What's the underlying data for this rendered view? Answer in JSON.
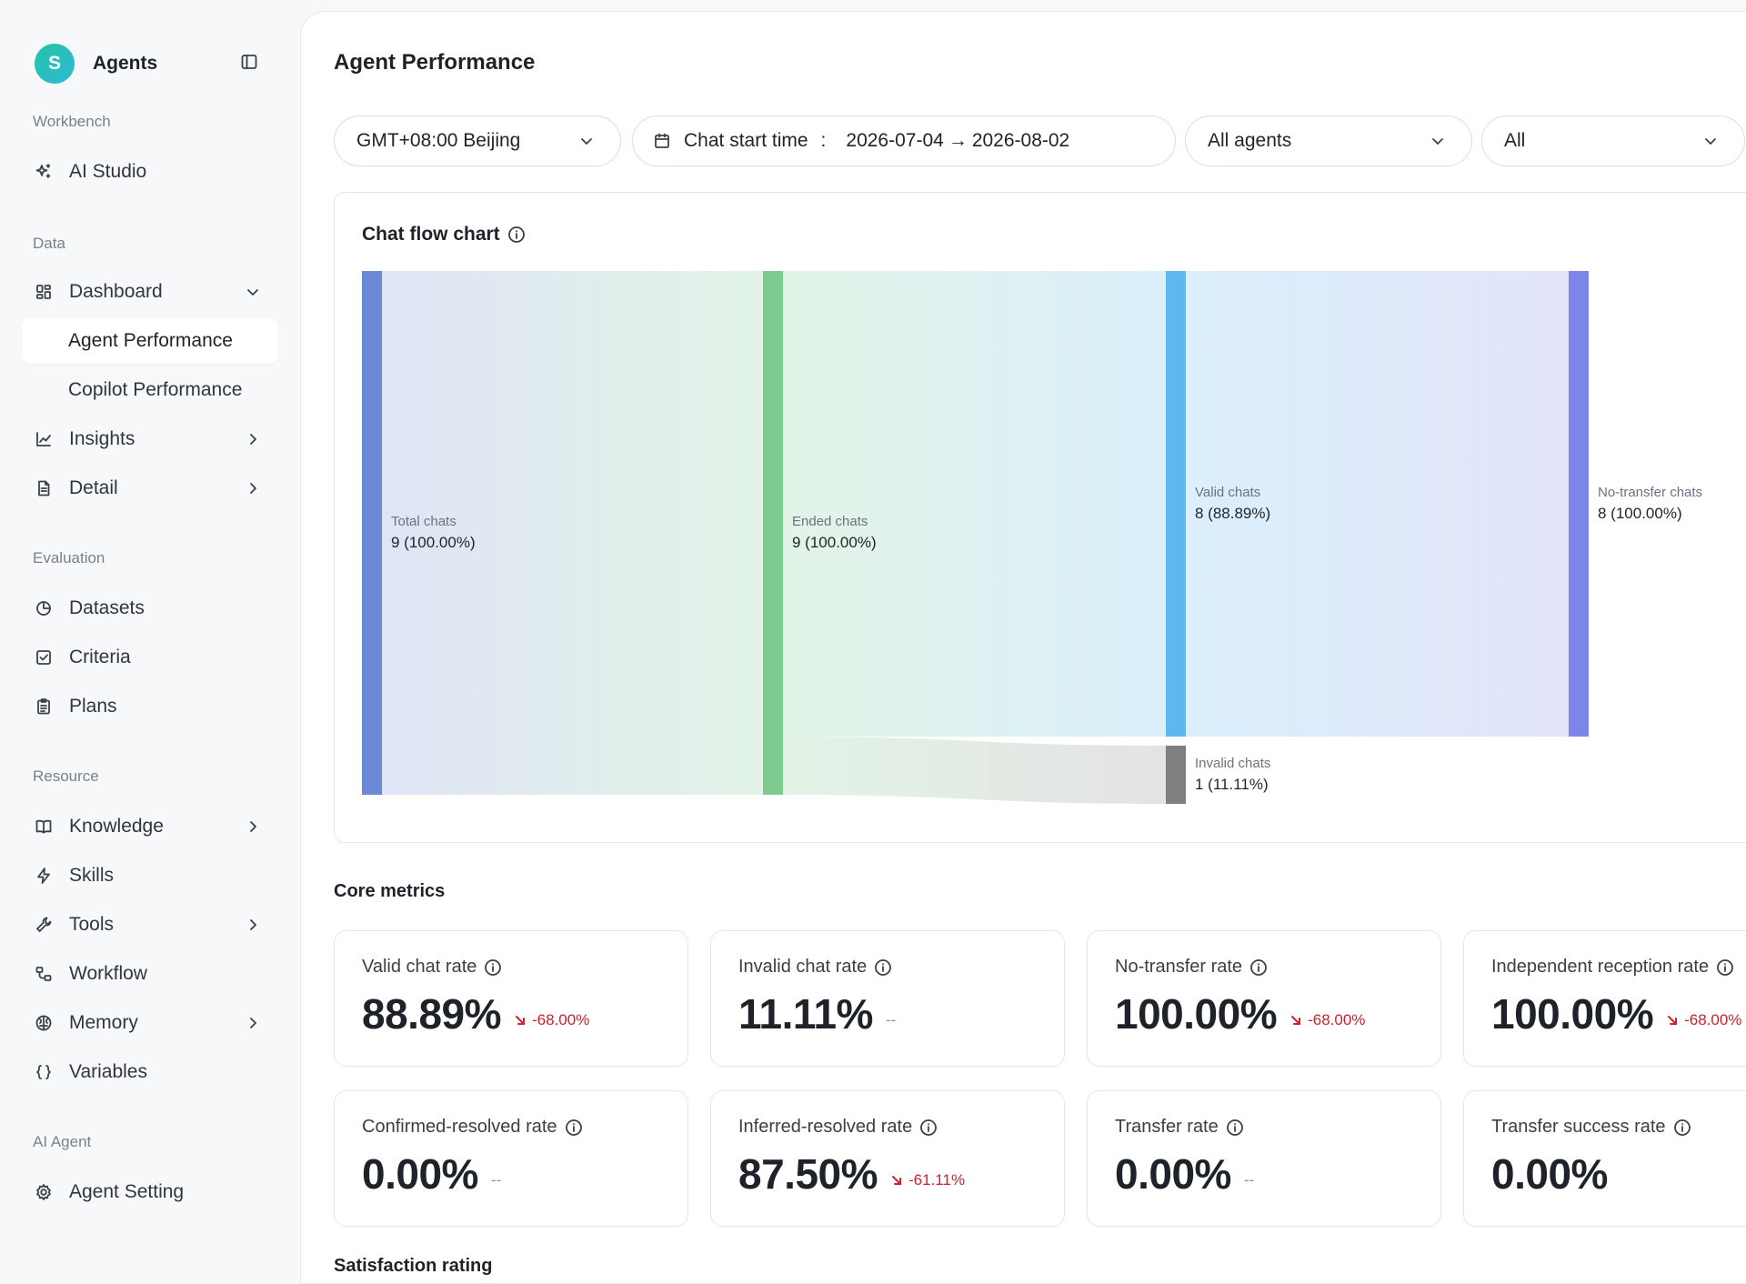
{
  "sidebar": {
    "brand": {
      "avatar_letter": "S",
      "name": "Agents"
    },
    "sections": {
      "workbench": "Workbench",
      "data": "Data",
      "evaluation": "Evaluation",
      "resource": "Resource",
      "ai_agent": "AI Agent"
    },
    "items": {
      "ai_studio": "AI Studio",
      "dashboard": "Dashboard",
      "agent_performance": "Agent Performance",
      "copilot_performance": "Copilot Performance",
      "insights": "Insights",
      "detail": "Detail",
      "datasets": "Datasets",
      "criteria": "Criteria",
      "plans": "Plans",
      "knowledge": "Knowledge",
      "skills": "Skills",
      "tools": "Tools",
      "workflow": "Workflow",
      "memory": "Memory",
      "variables": "Variables",
      "agent_setting": "Agent Setting"
    }
  },
  "main": {
    "title": "Agent Performance",
    "filters": {
      "timezone": "GMT+08:00 Beijing",
      "time_label": "Chat start time",
      "time_sep": ":",
      "date_start": "2026-07-04",
      "date_arrow": "→",
      "date_end": "2026-08-02",
      "agents": "All agents",
      "extra": "All"
    },
    "flow_chart": {
      "title": "Chat flow chart"
    },
    "core_metrics_title": "Core metrics",
    "metrics": [
      {
        "label": "Valid chat rate",
        "value": "88.89%",
        "delta": "-68.00%",
        "trend": "down"
      },
      {
        "label": "Invalid chat rate",
        "value": "11.11%",
        "delta": "--",
        "trend": "none"
      },
      {
        "label": "No-transfer rate",
        "value": "100.00%",
        "delta": "-68.00%",
        "trend": "down"
      },
      {
        "label": "Independent reception rate",
        "value": "100.00%",
        "delta": "-68.00%",
        "trend": "down"
      },
      {
        "label": "Confirmed-resolved rate",
        "value": "0.00%",
        "delta": "--",
        "trend": "none"
      },
      {
        "label": "Inferred-resolved rate",
        "value": "87.50%",
        "delta": "-61.11%",
        "trend": "down"
      },
      {
        "label": "Transfer rate",
        "value": "0.00%",
        "delta": "--",
        "trend": "none"
      },
      {
        "label": "Transfer success rate",
        "value": "0.00%",
        "delta": "",
        "trend": "none"
      }
    ],
    "satisfaction_title": "Satisfaction rating"
  },
  "chart_data": {
    "type": "sankey",
    "title": "Chat flow chart",
    "nodes": [
      {
        "name": "Total chats",
        "value": 9,
        "percent": "100.00%",
        "color": "#6b89d4"
      },
      {
        "name": "Ended chats",
        "value": 9,
        "percent": "100.00%",
        "color": "#7ecb8f"
      },
      {
        "name": "Valid chats",
        "value": 8,
        "percent": "88.89%",
        "color": "#5db8ef"
      },
      {
        "name": "Invalid chats",
        "value": 1,
        "percent": "11.11%",
        "color": "#7f7f7f"
      },
      {
        "name": "No-transfer chats",
        "value": 8,
        "percent": "100.00%",
        "color": "#7b86e6"
      }
    ],
    "links": [
      {
        "source": "Total chats",
        "target": "Ended chats",
        "value": 9
      },
      {
        "source": "Ended chats",
        "target": "Valid chats",
        "value": 8
      },
      {
        "source": "Ended chats",
        "target": "Invalid chats",
        "value": 1
      },
      {
        "source": "Valid chats",
        "target": "No-transfer chats",
        "value": 8
      }
    ]
  }
}
